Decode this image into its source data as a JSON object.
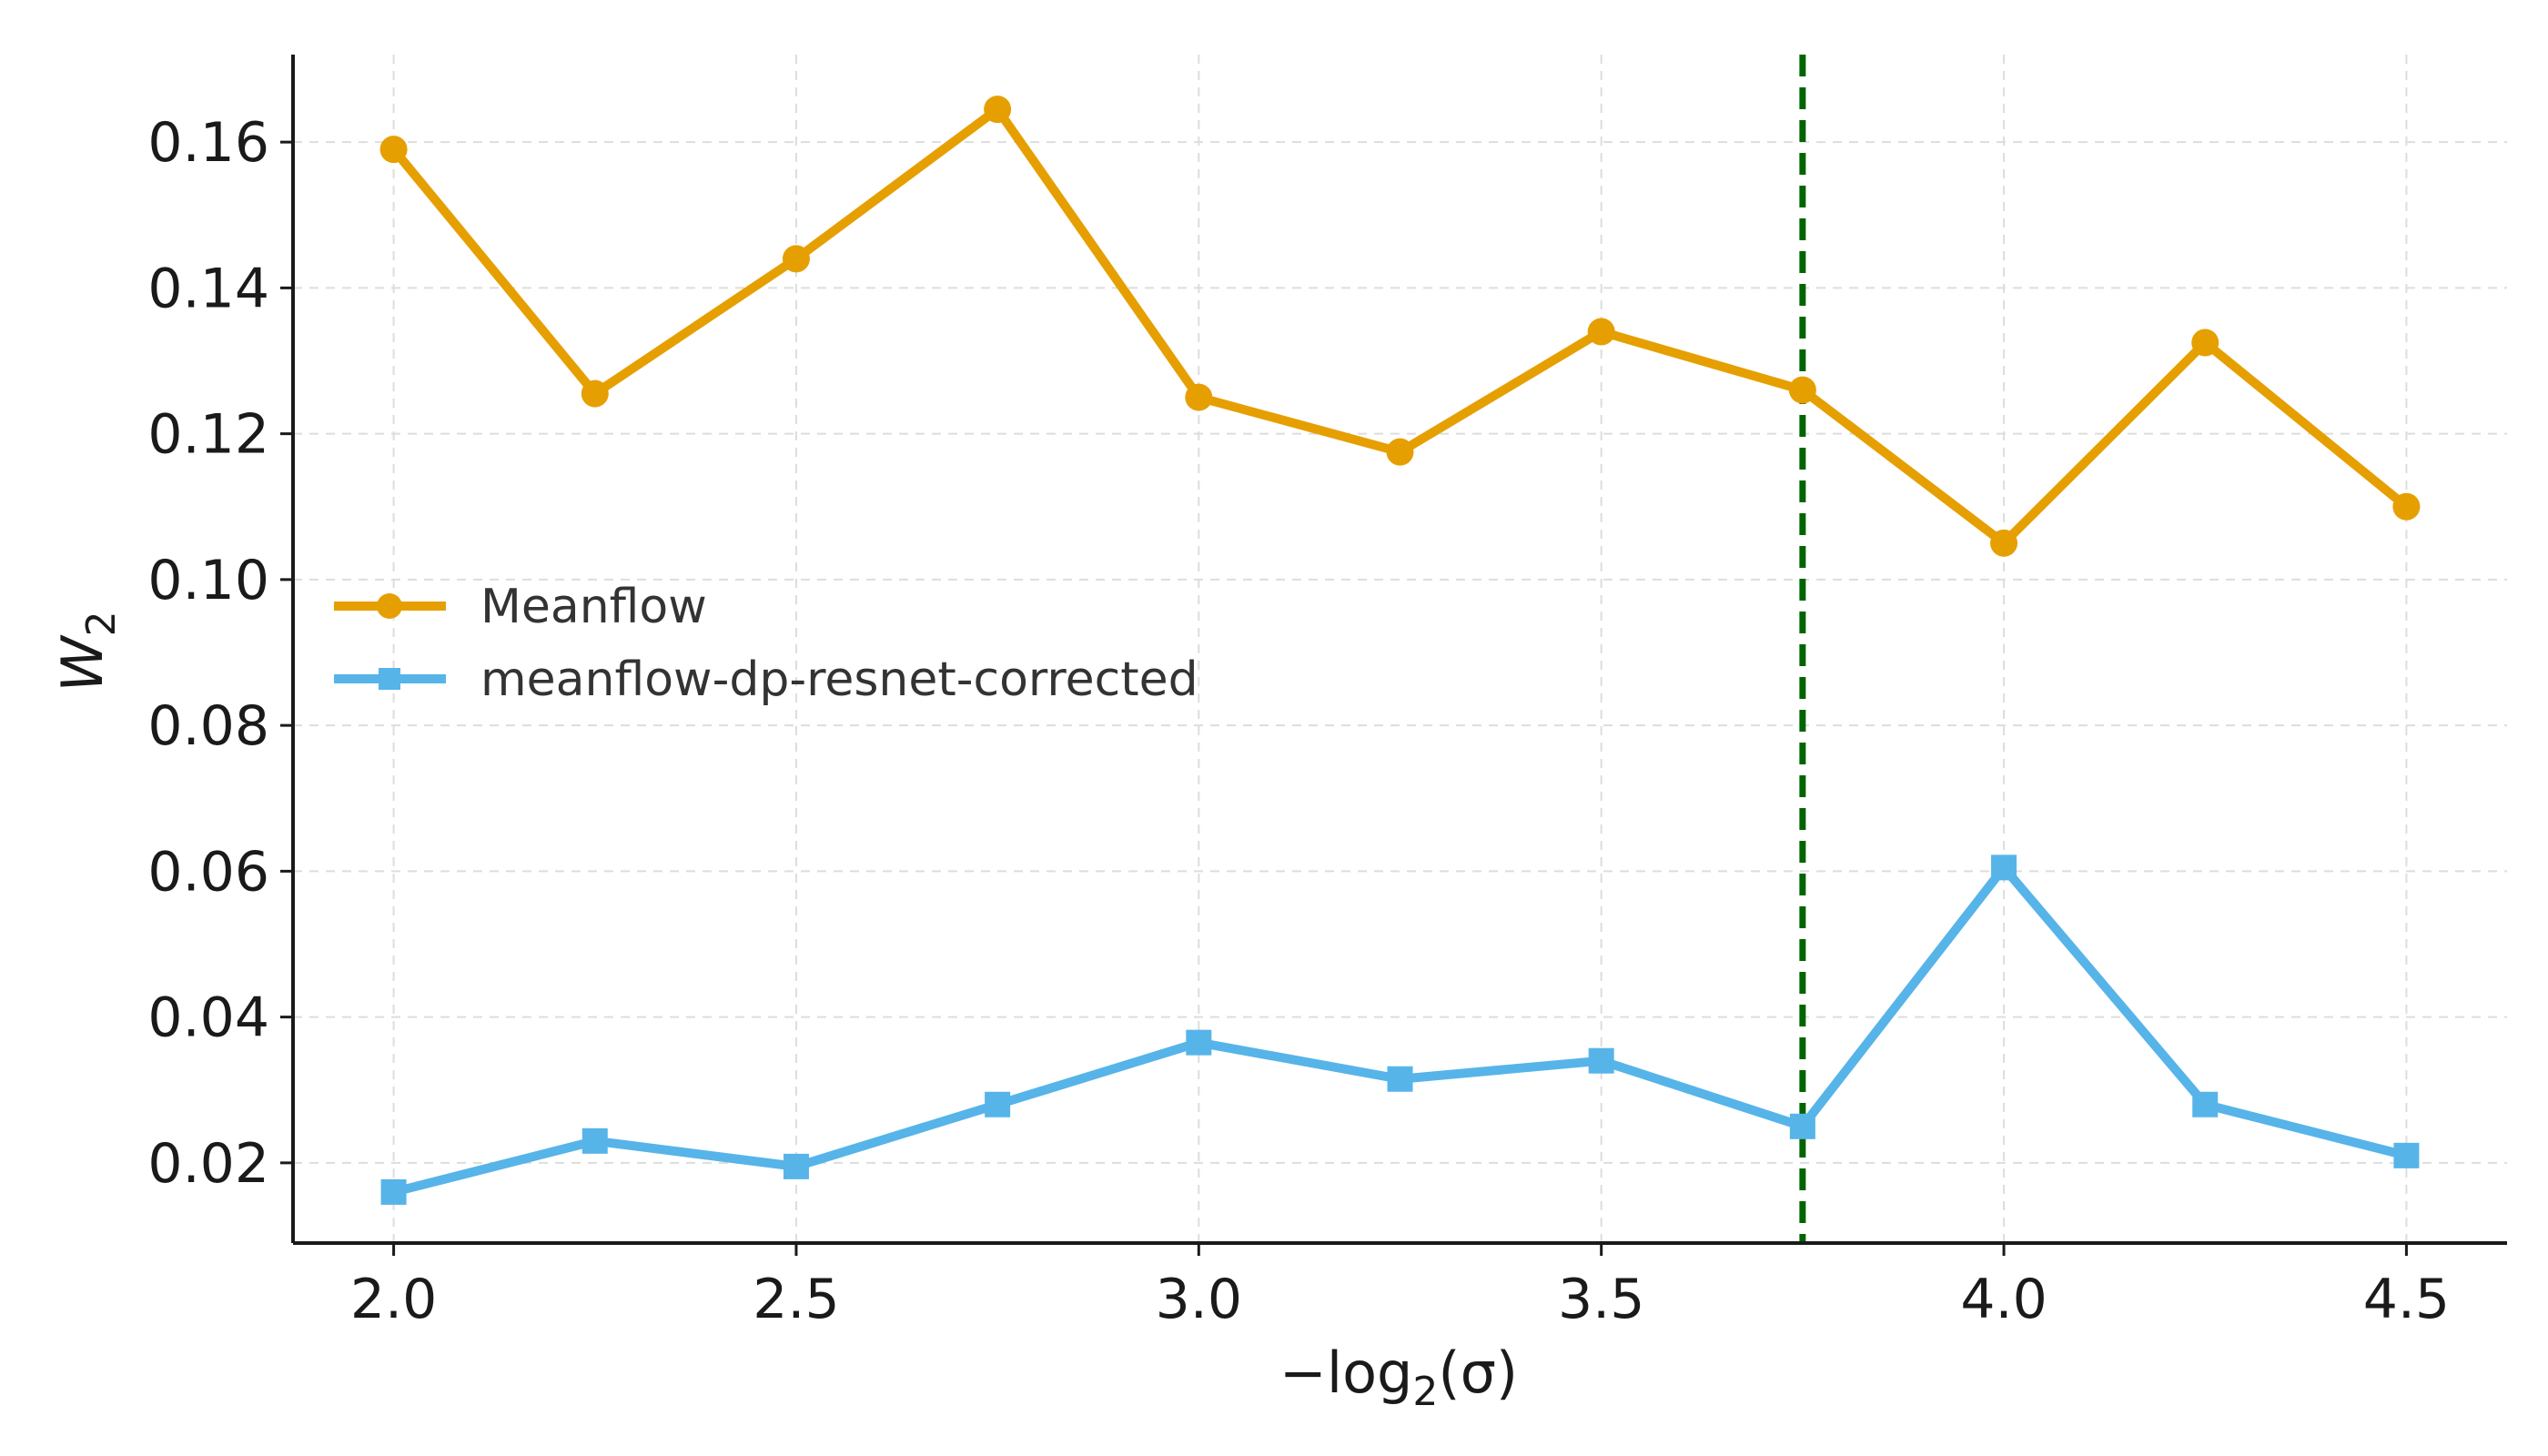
{
  "chart_data": {
    "type": "line",
    "xlabel": "−log",
    "xlabel_sub": "2",
    "xlabel_tail": "(σ)",
    "ylabel": "W",
    "ylabel_sub": "2",
    "x": [
      2.0,
      2.25,
      2.5,
      2.75,
      3.0,
      3.25,
      3.5,
      3.75,
      4.0,
      4.25,
      4.5
    ],
    "xlim": [
      1.875,
      4.625
    ],
    "ylim": [
      0.009,
      0.172
    ],
    "xticks": [
      "2.0",
      "2.5",
      "3.0",
      "3.5",
      "4.0",
      "4.5"
    ],
    "yticks": [
      "0.02",
      "0.04",
      "0.06",
      "0.08",
      "0.10",
      "0.12",
      "0.14",
      "0.16"
    ],
    "grid": true,
    "legend_position": "center-left",
    "vline": {
      "x": 3.75,
      "color": "#006400",
      "style": "dashed"
    },
    "series": [
      {
        "name": "Meanflow",
        "marker": "circle",
        "color": "#E69F00",
        "values": [
          0.159,
          0.1255,
          0.144,
          0.1645,
          0.125,
          0.1175,
          0.134,
          0.126,
          0.105,
          0.1325,
          0.11
        ]
      },
      {
        "name": "meanflow-dp-resnet-corrected",
        "marker": "square",
        "color": "#56B4E9",
        "values": [
          0.016,
          0.023,
          0.0195,
          0.028,
          0.0365,
          0.0315,
          0.034,
          0.025,
          0.0605,
          0.028,
          0.021
        ]
      }
    ]
  }
}
